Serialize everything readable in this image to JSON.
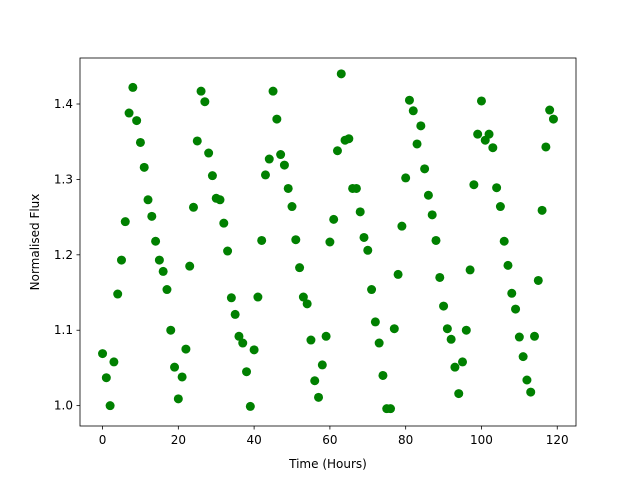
{
  "chart_data": {
    "type": "scatter",
    "x_label": "Time (Hours)",
    "y_label": "Normalised Flux",
    "series": [
      {
        "color": "#008000",
        "x": [
          0,
          1,
          2,
          3,
          4,
          5,
          6,
          7,
          8,
          9,
          10,
          11,
          12,
          13,
          14,
          15,
          16,
          17,
          18,
          19,
          20,
          21,
          22,
          23,
          24,
          25,
          26,
          27,
          28,
          29,
          30,
          31,
          32,
          33,
          34,
          35,
          36,
          37,
          38,
          39,
          40,
          41,
          42,
          43,
          44,
          45,
          46,
          47,
          48,
          49,
          50,
          51,
          52,
          53,
          54,
          55,
          56,
          57,
          58,
          59,
          60,
          61,
          62,
          63,
          64,
          65,
          66,
          67,
          68,
          69,
          70,
          71,
          72,
          73,
          74,
          75,
          76,
          77,
          78,
          79,
          80,
          81,
          82,
          83,
          84,
          85,
          86,
          87,
          88,
          89,
          90,
          91,
          92,
          93,
          94,
          95,
          96,
          97,
          98,
          99,
          100,
          101,
          102,
          103,
          104,
          105,
          106,
          107,
          108,
          109,
          110,
          111,
          112,
          113,
          114,
          115,
          116,
          117,
          118,
          119
        ],
        "values": [
          1.069,
          1.037,
          1.0,
          1.058,
          1.148,
          1.193,
          1.244,
          1.388,
          1.422,
          1.378,
          1.349,
          1.316,
          1.273,
          1.251,
          1.218,
          1.193,
          1.178,
          1.154,
          1.1,
          1.051,
          1.009,
          1.038,
          1.075,
          1.185,
          1.263,
          1.351,
          1.417,
          1.403,
          1.335,
          1.305,
          1.275,
          1.273,
          1.242,
          1.205,
          1.143,
          1.121,
          1.092,
          1.083,
          1.045,
          0.999,
          1.074,
          1.144,
          1.219,
          1.306,
          1.327,
          1.417,
          1.38,
          1.333,
          1.319,
          1.288,
          1.264,
          1.22,
          1.183,
          1.144,
          1.135,
          1.087,
          1.033,
          1.011,
          1.054,
          1.092,
          1.217,
          1.247,
          1.338,
          1.44,
          1.352,
          1.354,
          1.288,
          1.288,
          1.257,
          1.223,
          1.206,
          1.154,
          1.111,
          1.083,
          1.04,
          0.996,
          0.996,
          1.102,
          1.174,
          1.238,
          1.302,
          1.405,
          1.391,
          1.347,
          1.371,
          1.314,
          1.279,
          1.253,
          1.219,
          1.17,
          1.132,
          1.102,
          1.088,
          1.051,
          1.016,
          1.058,
          1.1,
          1.18,
          1.293,
          1.36,
          1.404,
          1.352,
          1.36,
          1.342,
          1.289,
          1.264,
          1.218,
          1.186,
          1.149,
          1.128,
          1.091,
          1.065,
          1.034,
          1.018,
          1.092,
          1.166,
          1.259,
          1.343,
          1.392,
          1.38
        ]
      }
    ],
    "xlim": [
      -5.95,
      124.95
    ],
    "xticks": [
      0,
      20,
      40,
      60,
      80,
      100,
      120
    ],
    "ylim": [
      0.973,
      1.461
    ],
    "yticks": [
      {
        "value": 1.0,
        "label": "1.0"
      },
      1.1,
      1.2,
      1.3,
      1.4
    ]
  }
}
